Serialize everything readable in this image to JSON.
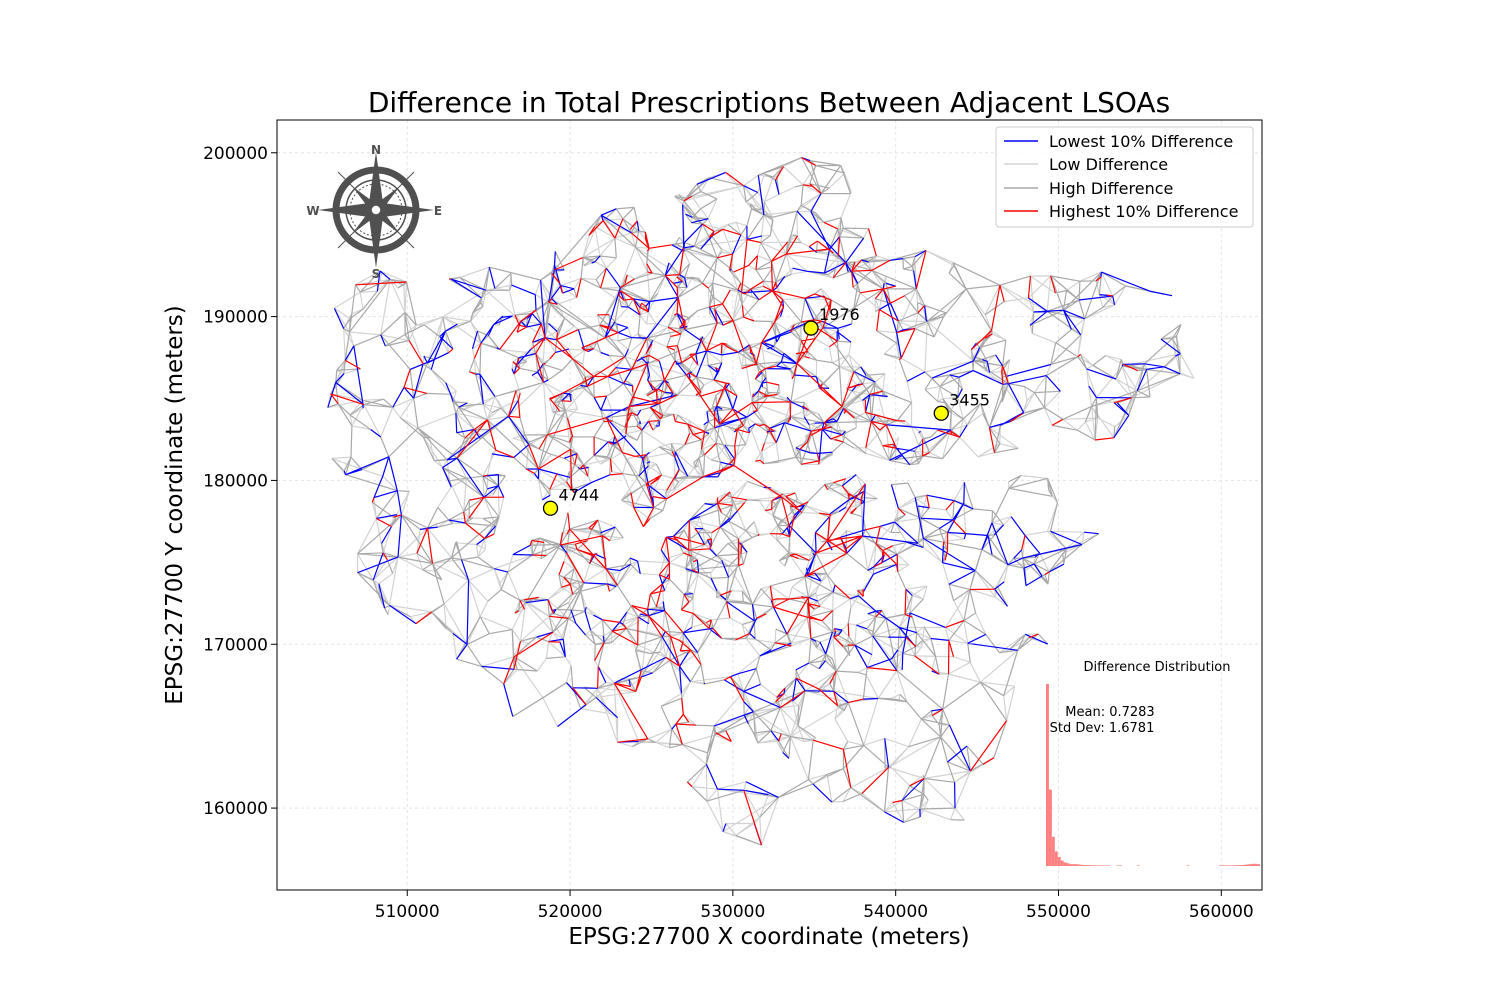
{
  "chart_data": {
    "type": "network-map",
    "title": "Difference in Total Prescriptions Between Adjacent LSOAs",
    "xlabel": "EPSG:27700 X coordinate (meters)",
    "ylabel": "EPSG:27700 Y coordinate (meters)",
    "xlim": [
      502000,
      562500
    ],
    "ylim": [
      155000,
      202000
    ],
    "xticks": [
      510000,
      520000,
      530000,
      540000,
      550000,
      560000
    ],
    "yticks": [
      160000,
      170000,
      180000,
      190000,
      200000
    ],
    "grid": true,
    "legend": {
      "placement": "top-right",
      "entries": [
        {
          "label": "Lowest 10% Difference",
          "color": "#0000ff"
        },
        {
          "label": "Low Difference",
          "color": "#d3d3d3"
        },
        {
          "label": "High Difference",
          "color": "#a9a9a9"
        },
        {
          "label": "Highest 10% Difference",
          "color": "#ff0000"
        }
      ]
    },
    "highlighted_points": [
      {
        "label": "1976",
        "x": 534800,
        "y": 189300
      },
      {
        "label": "3455",
        "x": 542800,
        "y": 184100
      },
      {
        "label": "4744",
        "x": 518800,
        "y": 178300
      }
    ],
    "compass": {
      "n": "N",
      "s": "S",
      "e": "E",
      "w": "W"
    },
    "inset": {
      "title": "Difference Distribution",
      "mean_label": "Mean: 0.7283",
      "std_label": "Std Dev: 1.6781",
      "bar_color": "#ff8080",
      "bars": [
        100,
        42,
        16,
        8,
        5,
        3,
        2,
        1.5,
        1,
        1,
        1,
        0.8,
        0.6,
        0.5,
        0.5,
        0.4,
        0.4,
        0.3,
        0.3,
        0.3,
        0.3,
        0.3,
        0,
        0,
        0.3,
        0.3,
        0,
        0,
        0,
        0,
        0,
        0.3,
        0,
        0,
        0,
        0,
        0,
        0,
        0,
        0,
        0,
        0,
        0,
        0,
        0,
        0,
        0,
        0,
        0.3,
        0,
        0,
        0,
        0,
        0,
        0,
        0,
        0,
        0,
        0,
        0.3,
        0.3,
        0.3,
        0.3,
        0.4,
        0.4,
        0.5,
        0.5,
        0.6,
        0.8,
        1,
        1.2,
        1.2,
        1
      ]
    }
  }
}
